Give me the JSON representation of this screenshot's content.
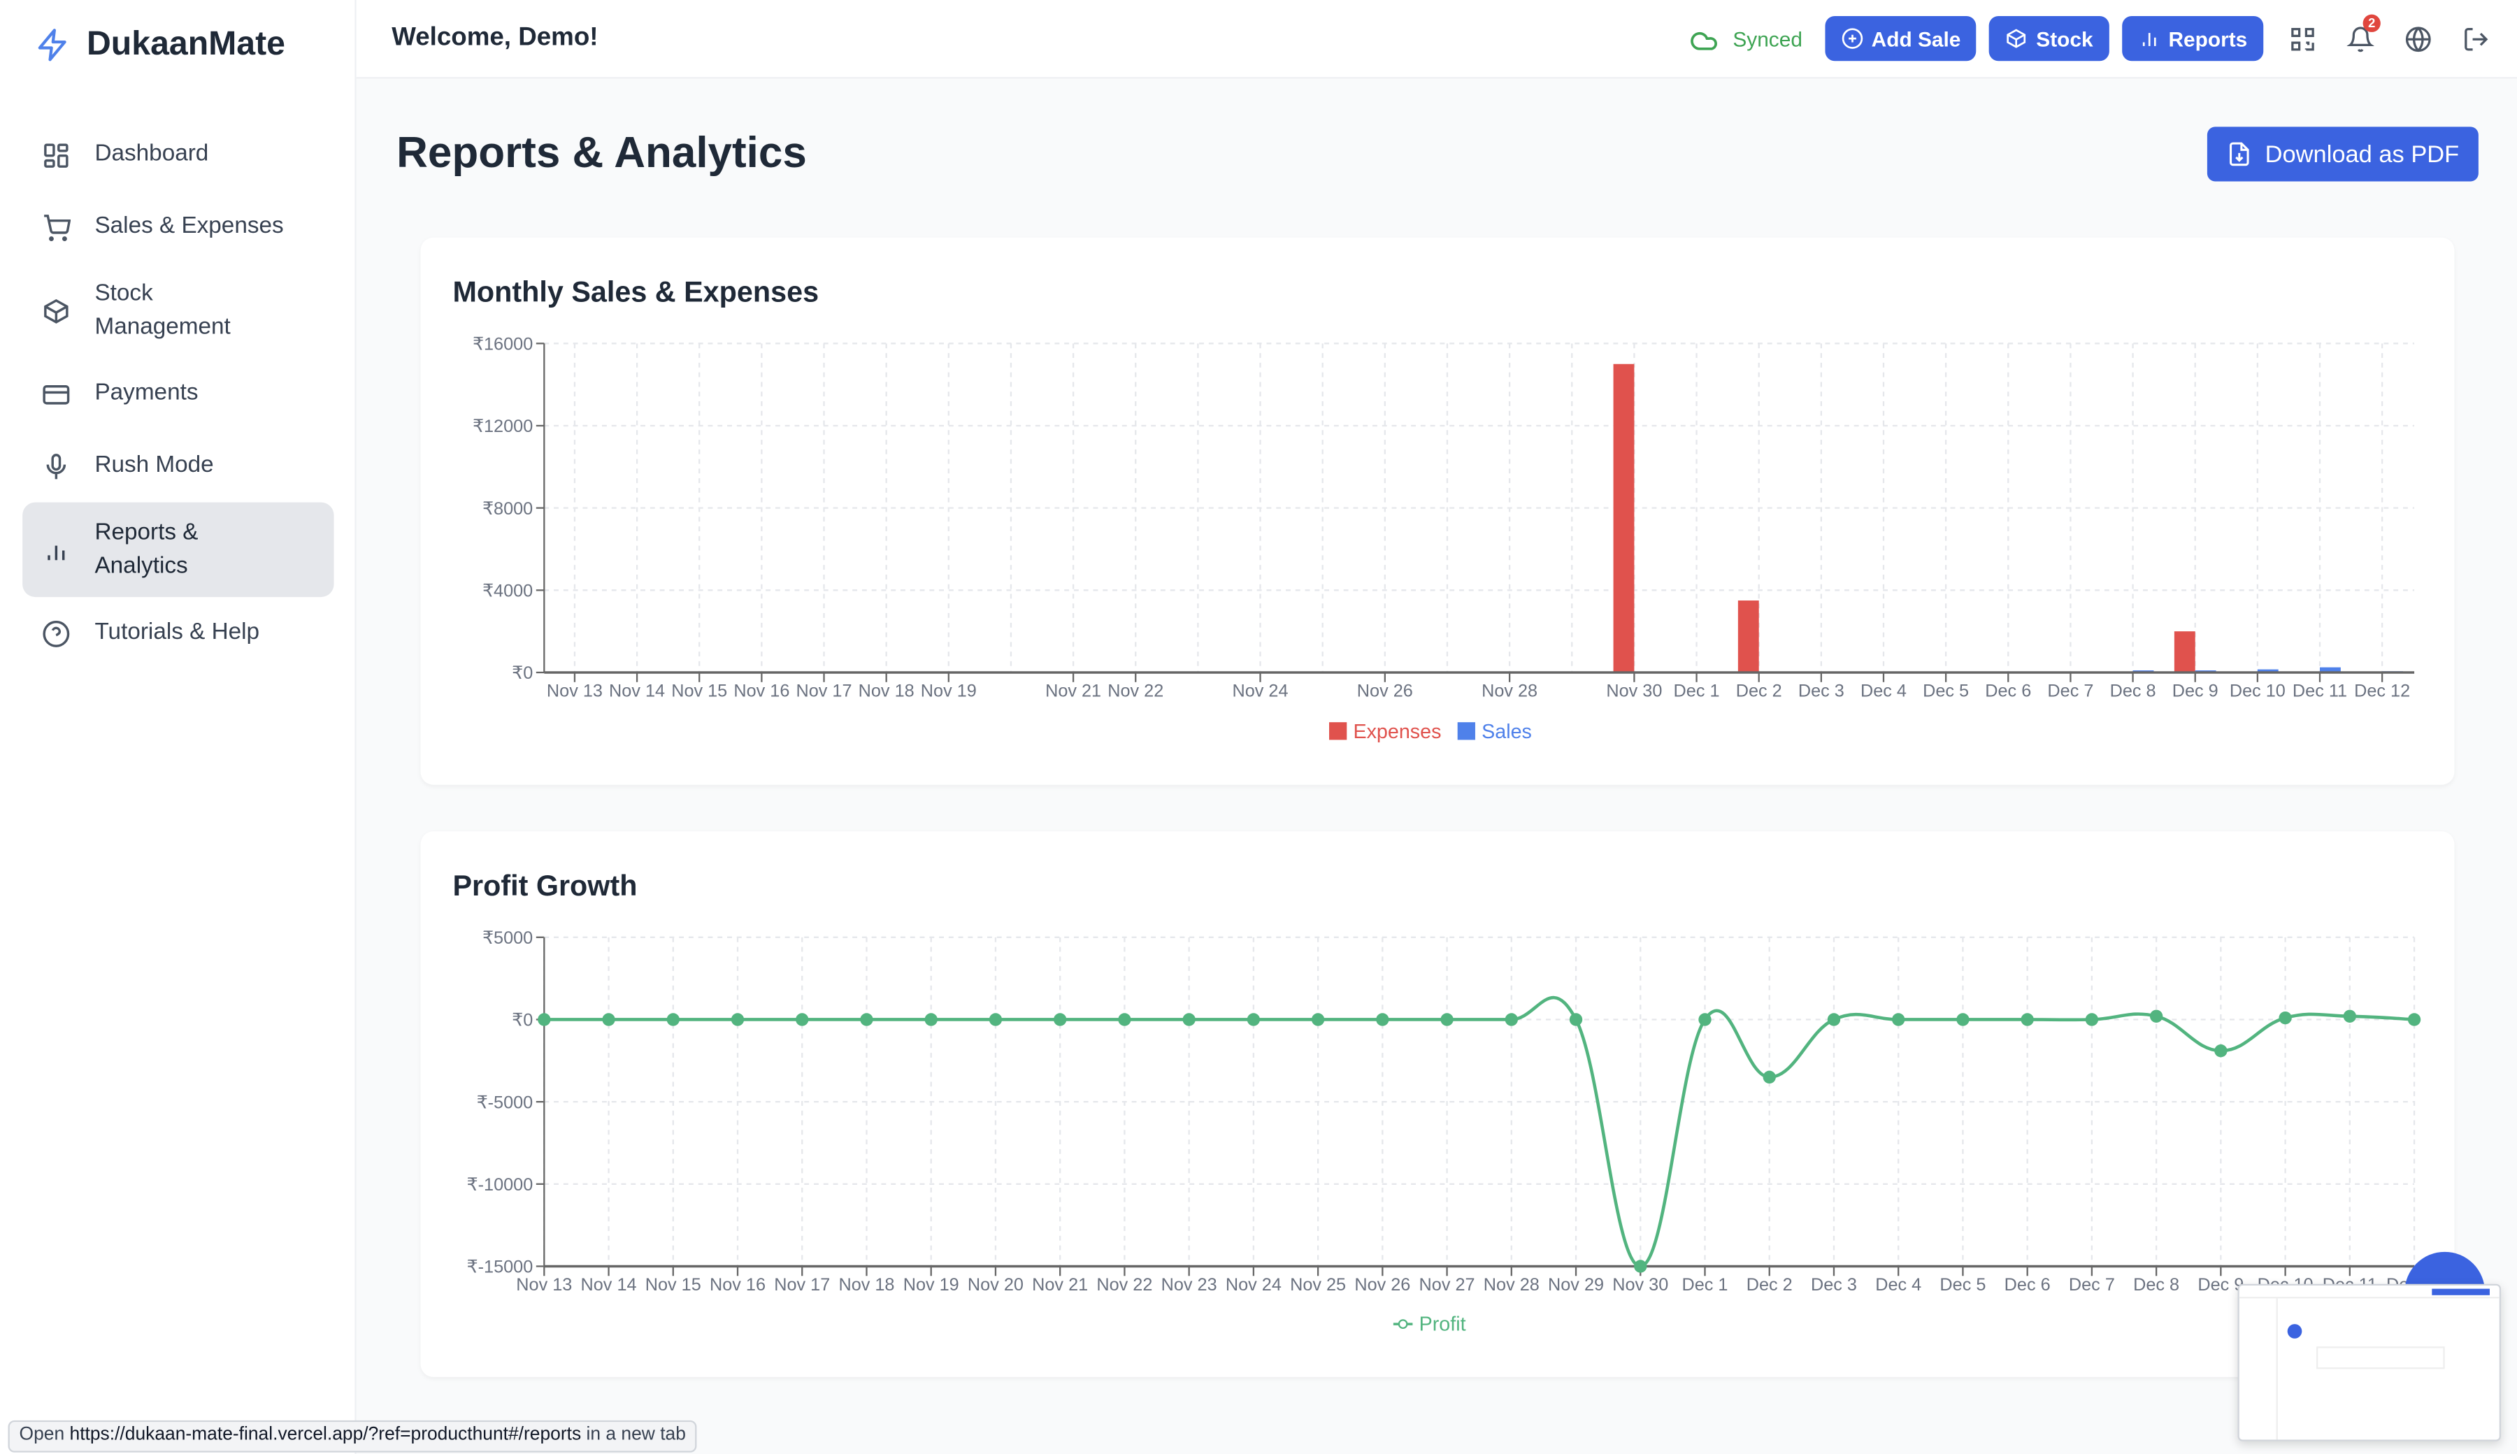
{
  "app": {
    "name": "DukaanMate",
    "welcome": "Welcome, Demo!"
  },
  "sidebar": {
    "items": [
      {
        "label": "Dashboard",
        "icon": "dashboard-icon"
      },
      {
        "label": "Sales & Expenses",
        "icon": "cart-icon"
      },
      {
        "label": "Stock Management",
        "icon": "box-icon"
      },
      {
        "label": "Payments",
        "icon": "credit-card-icon"
      },
      {
        "label": "Rush Mode",
        "icon": "microphone-icon"
      },
      {
        "label": "Reports & Analytics",
        "icon": "bar-chart-icon",
        "active": true
      },
      {
        "label": "Tutorials & Help",
        "icon": "help-circle-icon"
      }
    ]
  },
  "header": {
    "sync_status": "Synced",
    "add_sale": "Add Sale",
    "stock": "Stock",
    "reports": "Reports",
    "notification_count": "2"
  },
  "page": {
    "title": "Reports & Analytics",
    "download_pdf": "Download as PDF"
  },
  "colors": {
    "accent": "#3b63e0",
    "expenses": "#e0524d",
    "sales": "#4f81ea",
    "profit": "#52b47f",
    "synced": "#3ea453"
  },
  "status_bar": {
    "prefix": "Open",
    "url": "https://dukaan-mate-final.vercel.app/?ref=producthunt#/reports",
    "suffix": "in a new tab"
  },
  "chart_data": [
    {
      "type": "bar",
      "title": "Monthly Sales & Expenses",
      "categories": [
        "Nov 13",
        "Nov 14",
        "Nov 15",
        "Nov 16",
        "Nov 17",
        "Nov 18",
        "Nov 19",
        "Nov 20",
        "Nov 21",
        "Nov 22",
        "Nov 23",
        "Nov 24",
        "Nov 25",
        "Nov 26",
        "Nov 27",
        "Nov 28",
        "Nov 29",
        "Nov 30",
        "Dec 1",
        "Dec 2",
        "Dec 3",
        "Dec 4",
        "Dec 5",
        "Dec 6",
        "Dec 7",
        "Dec 8",
        "Dec 9",
        "Dec 10",
        "Dec 11",
        "Dec 12"
      ],
      "tick_labels": [
        "Nov 13",
        "Nov 14",
        "Nov 15",
        "Nov 16",
        "Nov 17",
        "Nov 18",
        "Nov 19",
        "",
        "Nov 21",
        "Nov 22",
        "",
        "Nov 24",
        "",
        "Nov 26",
        "",
        "Nov 28",
        "",
        "Nov 30",
        "Dec 1",
        "Dec 2",
        "Dec 3",
        "Dec 4",
        "Dec 5",
        "Dec 6",
        "Dec 7",
        "Dec 8",
        "Dec 9",
        "Dec 10",
        "Dec 11",
        "Dec 12"
      ],
      "series": [
        {
          "name": "Expenses",
          "values": [
            0,
            0,
            0,
            0,
            0,
            0,
            0,
            0,
            0,
            0,
            0,
            0,
            0,
            0,
            0,
            0,
            0,
            15000,
            0,
            3500,
            0,
            0,
            0,
            0,
            0,
            0,
            2000,
            0,
            0,
            0
          ]
        },
        {
          "name": "Sales",
          "values": [
            0,
            0,
            0,
            0,
            0,
            0,
            0,
            0,
            0,
            0,
            0,
            0,
            0,
            0,
            0,
            0,
            0,
            0,
            0,
            0,
            0,
            0,
            0,
            0,
            0,
            100,
            100,
            150,
            250,
            60
          ]
        }
      ],
      "yticks": [
        "₹0",
        "₹4000",
        "₹8000",
        "₹12000",
        "₹16000"
      ],
      "ylim": [
        0,
        16000
      ],
      "legend": "bottom",
      "grid": true
    },
    {
      "type": "line",
      "title": "Profit Growth",
      "categories": [
        "Nov 13",
        "Nov 14",
        "Nov 15",
        "Nov 16",
        "Nov 17",
        "Nov 18",
        "Nov 19",
        "Nov 20",
        "Nov 21",
        "Nov 22",
        "Nov 23",
        "Nov 24",
        "Nov 25",
        "Nov 26",
        "Nov 27",
        "Nov 28",
        "Nov 29",
        "Nov 30",
        "Dec 1",
        "Dec 2",
        "Dec 3",
        "Dec 4",
        "Dec 5",
        "Dec 6",
        "Dec 7",
        "Dec 8",
        "Dec 9",
        "Dec 10",
        "Dec 11",
        "Dec 12"
      ],
      "series": [
        {
          "name": "Profit",
          "values": [
            0,
            0,
            0,
            0,
            0,
            0,
            0,
            0,
            0,
            0,
            0,
            0,
            0,
            0,
            0,
            0,
            0,
            -15000,
            0,
            -3500,
            0,
            0,
            0,
            0,
            0,
            200,
            -1900,
            100,
            200,
            0
          ]
        }
      ],
      "yticks": [
        "₹-15000",
        "₹-10000",
        "₹-5000",
        "₹0",
        "₹5000"
      ],
      "ylim": [
        -15000,
        5000
      ],
      "legend": "bottom",
      "grid": true
    }
  ]
}
